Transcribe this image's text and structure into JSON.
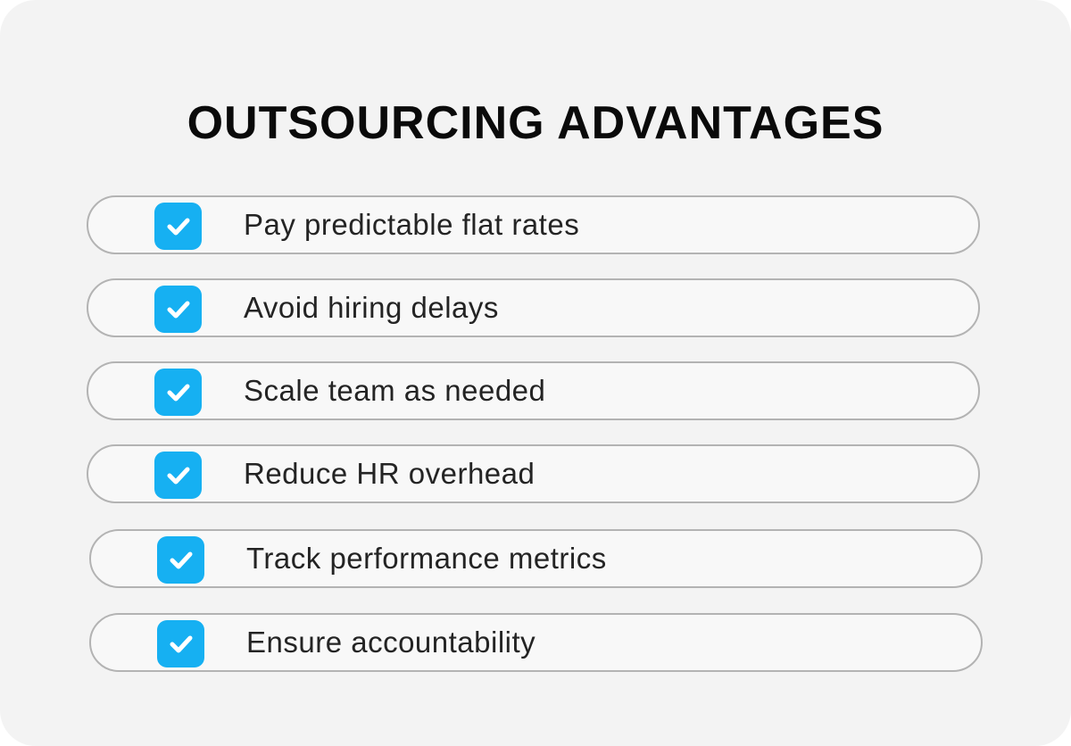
{
  "header": {
    "title": "OUTSOURCING ADVANTAGES"
  },
  "items": [
    {
      "label": "Pay predictable flat rates"
    },
    {
      "label": "Avoid hiring delays"
    },
    {
      "label": "Scale team as needed"
    },
    {
      "label": "Reduce HR overhead"
    },
    {
      "label": "Track performance metrics"
    },
    {
      "label": "Ensure accountability"
    }
  ]
}
